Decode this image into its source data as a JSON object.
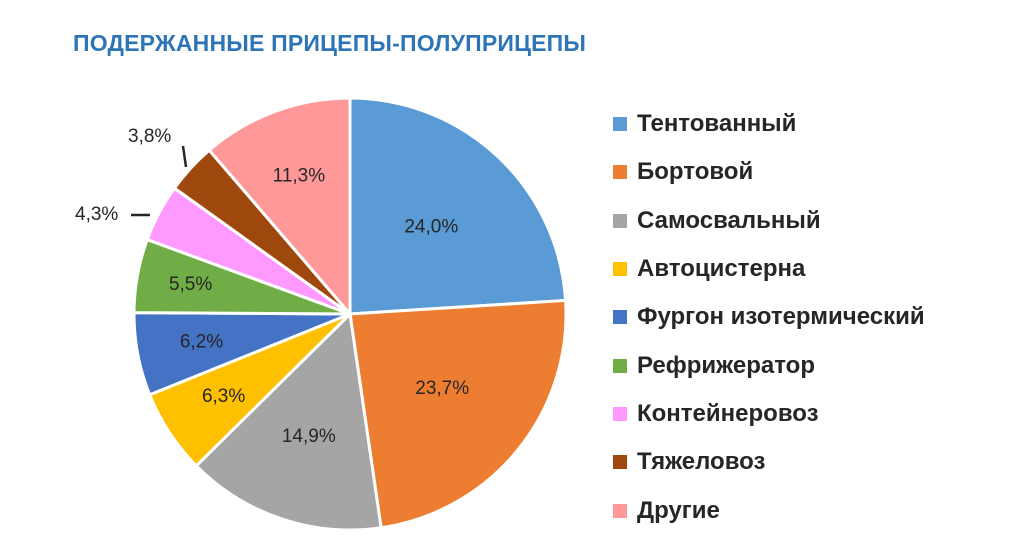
{
  "title": "ПОДЕРЖАННЫЕ ПРИЦЕПЫ-ПОЛУПРИЦЕПЫ",
  "chart_data": {
    "type": "pie",
    "title": "ПОДЕРЖАННЫЕ ПРИЦЕПЫ-ПОЛУПРИЦЕПЫ",
    "categories": [
      "Тентованный",
      "Бортовой",
      "Самосвальный",
      "Автоцистерна",
      "Фургон изотермический",
      "Рефрижератор",
      "Контейнеровоз",
      "Тяжеловоз",
      "Другие"
    ],
    "values": [
      24.0,
      23.7,
      14.9,
      6.3,
      6.2,
      5.5,
      4.3,
      3.8,
      11.3
    ],
    "labels": [
      "24,0%",
      "23,7%",
      "14,9%",
      "6,3%",
      "6,2%",
      "5,5%",
      "4,3%",
      "3,8%",
      "11,3%"
    ],
    "colors": [
      "#5B9BD5",
      "#ED7D31",
      "#A5A5A5",
      "#FFC000",
      "#4472C4",
      "#70AD47",
      "#FF99FF",
      "#9E480E",
      "#FF9999"
    ],
    "start": "12 o'clock",
    "direction": "clockwise",
    "legend": "right"
  }
}
